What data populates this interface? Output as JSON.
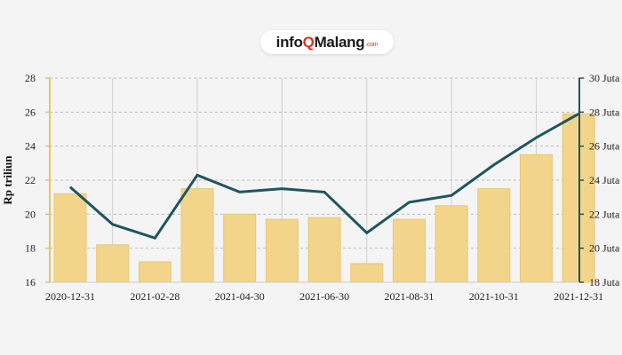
{
  "logo": {
    "parts": [
      "info",
      "Q",
      "Malang",
      ".com"
    ]
  },
  "chart_data": {
    "type": "bar",
    "title": "",
    "ylabel": "Rp triliun",
    "ylim": [
      16,
      28
    ],
    "yticks": [
      "16",
      "18",
      "20",
      "22",
      "24",
      "26",
      "28"
    ],
    "y2lim": [
      18,
      30
    ],
    "y2ticks": [
      "18 Juta",
      "20 Juta",
      "22 Juta",
      "24 Juta",
      "26 Juta",
      "28 Juta",
      "30 Juta"
    ],
    "xtick_labels": [
      "2020-12-31",
      "2021-02-28",
      "2021-04-30",
      "2021-06-30",
      "2021-08-31",
      "2021-10-31",
      "2021-12-31"
    ],
    "categories": [
      "2020-12-31",
      "2021-01-31",
      "2021-02-28",
      "2021-03-31",
      "2021-04-30",
      "2021-05-31",
      "2021-06-30",
      "2021-07-31",
      "2021-08-31",
      "2021-09-30",
      "2021-10-31",
      "2021-11-30",
      "2021-12-31"
    ],
    "series": [
      {
        "type": "bar",
        "axis": "left",
        "color": "#f2d58a",
        "values": [
          21.2,
          18.2,
          17.2,
          21.5,
          20.0,
          19.7,
          19.8,
          17.1,
          19.7,
          20.5,
          21.5,
          23.5,
          25.9
        ]
      },
      {
        "type": "line",
        "axis": "right",
        "color": "#1f5560",
        "values": [
          23.6,
          21.4,
          20.6,
          24.3,
          23.3,
          23.5,
          23.3,
          20.9,
          22.7,
          23.1,
          24.9,
          26.5,
          27.9
        ]
      }
    ],
    "grid": true,
    "colors": {
      "left_axis": "#e8c558",
      "right_axis": "#1f5560",
      "grid": "#bbbbbb"
    }
  }
}
